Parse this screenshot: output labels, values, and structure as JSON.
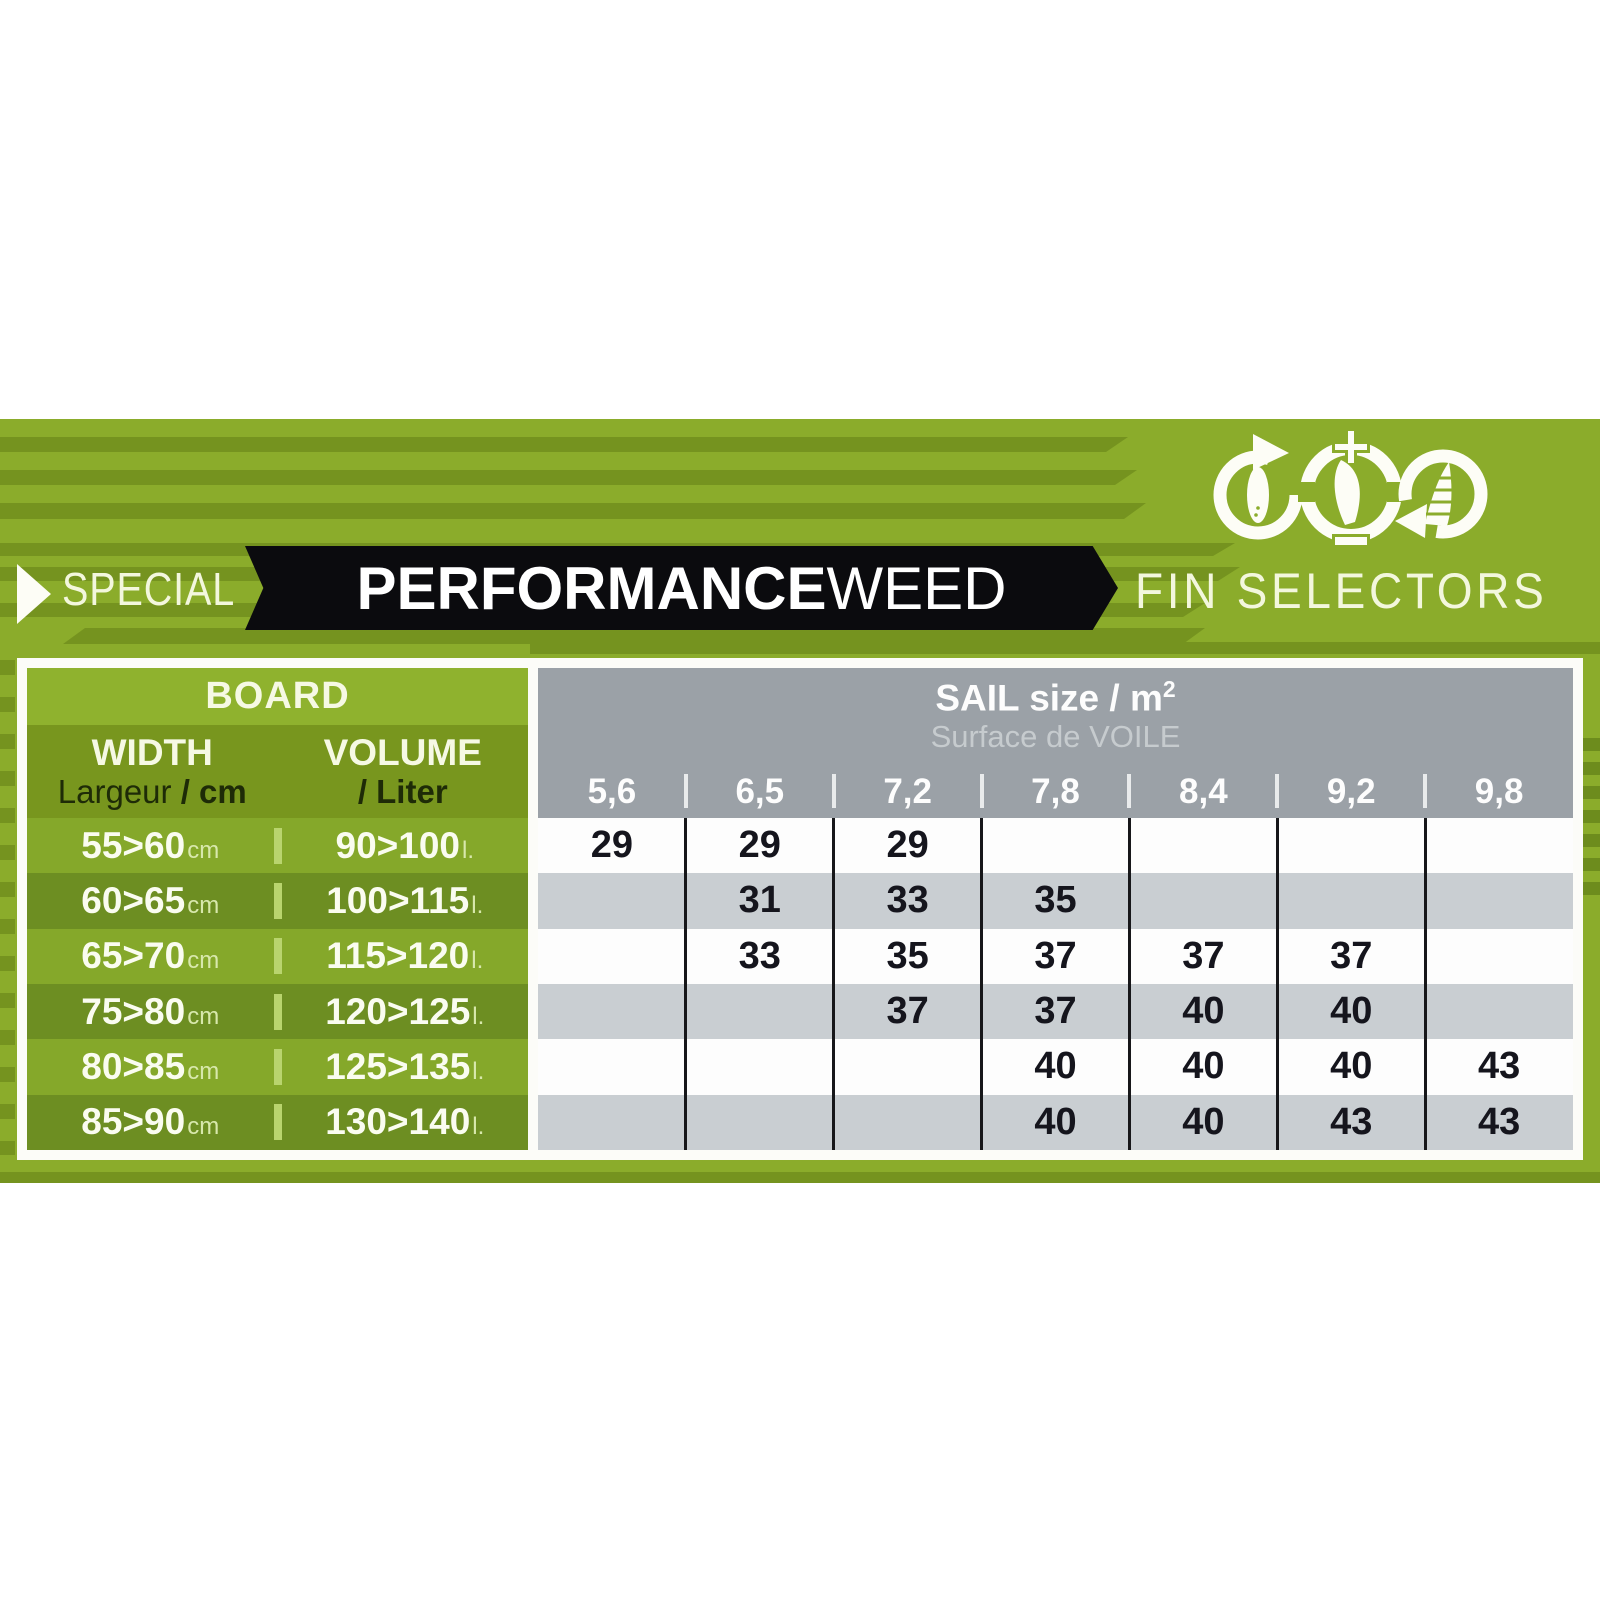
{
  "header": {
    "special": "SPECIAL",
    "performance_bold": "PERFORMANCE",
    "performance_light": "WEED",
    "fin_selectors": "FIN SELECTORS",
    "logo_icons": [
      "board-rotate-icon",
      "fin-plus-minus-icon",
      "sail-rotate-icon"
    ]
  },
  "board_panel": {
    "title": "BOARD",
    "width_label": "WIDTH",
    "width_sub_regular": "Largeur ",
    "width_sub_bold": "/ cm",
    "volume_label": "VOLUME",
    "volume_sub_bold": "/ Liter",
    "row_width_unit": "cm",
    "row_volume_unit": "l."
  },
  "sail_panel": {
    "title_main": "SAIL size / m",
    "title_sup": "2",
    "subtitle": "Surface de VOILE"
  },
  "chart_data": {
    "type": "table",
    "title": "SPECIAL PERFORMANCEWEED FIN SELECTORS",
    "columns_header": "SAIL size / m2 (Surface de VOILE)",
    "columns": [
      "5,6",
      "6,5",
      "7,2",
      "7,8",
      "8,4",
      "9,2",
      "9,8"
    ],
    "rows": [
      {
        "board_width_cm": "55>60",
        "volume_liter": "90>100",
        "fin_sizes": [
          "29",
          "29",
          "29",
          "",
          "",
          "",
          ""
        ]
      },
      {
        "board_width_cm": "60>65",
        "volume_liter": "100>115",
        "fin_sizes": [
          "",
          "31",
          "33",
          "35",
          "",
          "",
          ""
        ]
      },
      {
        "board_width_cm": "65>70",
        "volume_liter": "115>120",
        "fin_sizes": [
          "",
          "33",
          "35",
          "37",
          "37",
          "37",
          ""
        ]
      },
      {
        "board_width_cm": "75>80",
        "volume_liter": "120>125",
        "fin_sizes": [
          "",
          "",
          "37",
          "37",
          "40",
          "40",
          ""
        ]
      },
      {
        "board_width_cm": "80>85",
        "volume_liter": "125>135",
        "fin_sizes": [
          "",
          "",
          "",
          "40",
          "40",
          "40",
          "43"
        ]
      },
      {
        "board_width_cm": "85>90",
        "volume_liter": "130>140",
        "fin_sizes": [
          "",
          "",
          "",
          "40",
          "40",
          "43",
          "43"
        ]
      }
    ]
  },
  "colors": {
    "green_main": "#8bac2b",
    "green_stripe": "#75931f",
    "green_row_light": "#85a82a",
    "green_row_dark": "#6d8e22",
    "green_board_band": "#8fb22e",
    "green_width_band": "#78961e",
    "gray_header": "#9ba1a7",
    "gray_row": "#c9ced2",
    "black_banner": "#0b0b0e",
    "cream_text": "#f3f7dd",
    "cell_text": "#15151d"
  }
}
